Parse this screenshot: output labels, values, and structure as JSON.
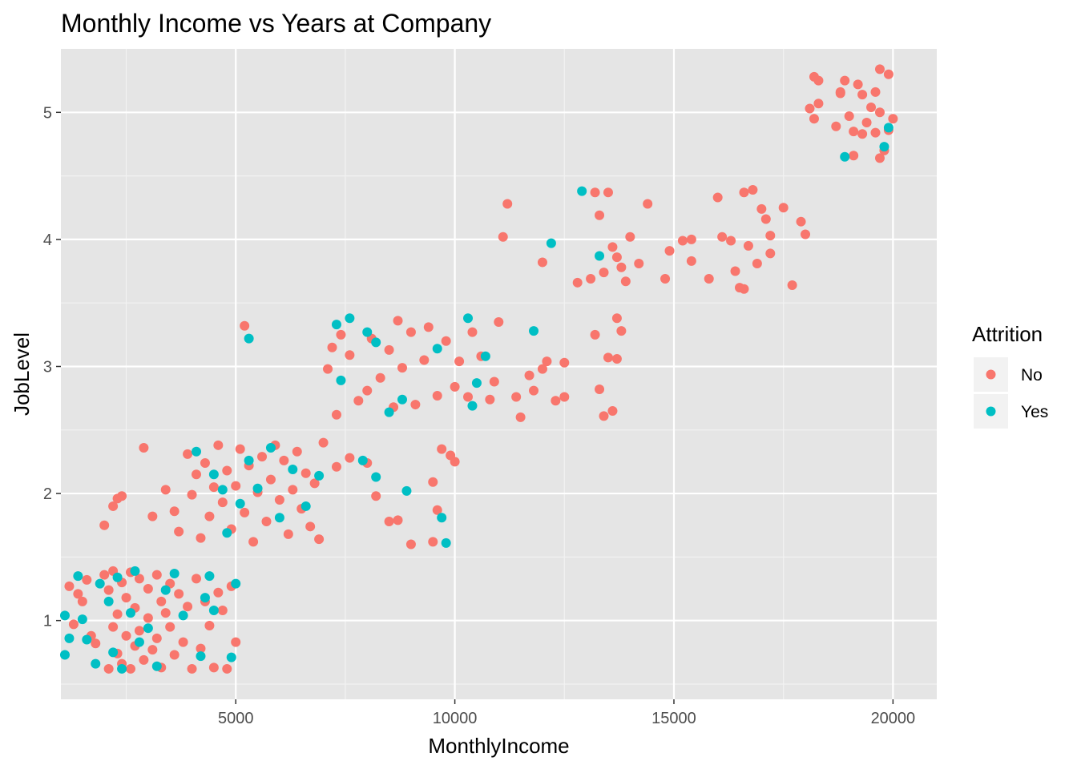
{
  "chart_data": {
    "type": "scatter",
    "title": "Monthly Income vs Years at Company",
    "xlabel": "MonthlyIncome",
    "ylabel": "JobLevel",
    "xlim": [
      1009,
      20999
    ],
    "ylim": [
      0.38,
      5.5
    ],
    "xticks": [
      5000,
      10000,
      15000,
      20000
    ],
    "yticks": [
      1,
      2,
      3,
      4,
      5
    ],
    "grid": true,
    "legend": {
      "title": "Attrition",
      "position": "right",
      "entries": [
        "No",
        "Yes"
      ]
    },
    "colors": {
      "No": "#F8766D",
      "Yes": "#00BFC4"
    },
    "series": [
      {
        "name": "No",
        "points": [
          [
            1200,
            1.27
          ],
          [
            1300,
            0.97
          ],
          [
            1400,
            1.21
          ],
          [
            1500,
            1.15
          ],
          [
            1600,
            1.32
          ],
          [
            1700,
            0.88
          ],
          [
            1800,
            0.82
          ],
          [
            2000,
            1.36
          ],
          [
            2100,
            0.62
          ],
          [
            2100,
            1.24
          ],
          [
            2200,
            1.39
          ],
          [
            2200,
            0.95
          ],
          [
            2300,
            1.05
          ],
          [
            2300,
            0.74
          ],
          [
            2400,
            1.3
          ],
          [
            2400,
            0.66
          ],
          [
            2500,
            1.18
          ],
          [
            2500,
            0.88
          ],
          [
            2600,
            1.38
          ],
          [
            2600,
            0.62
          ],
          [
            2700,
            1.1
          ],
          [
            2700,
            0.8
          ],
          [
            2800,
            1.33
          ],
          [
            2800,
            0.92
          ],
          [
            2900,
            0.69
          ],
          [
            3000,
            1.25
          ],
          [
            3000,
            1.02
          ],
          [
            3100,
            0.77
          ],
          [
            3200,
            1.36
          ],
          [
            3200,
            0.86
          ],
          [
            3300,
            1.15
          ],
          [
            3300,
            0.63
          ],
          [
            3400,
            1.06
          ],
          [
            3500,
            0.95
          ],
          [
            3500,
            1.29
          ],
          [
            3600,
            0.73
          ],
          [
            3700,
            1.21
          ],
          [
            3800,
            0.83
          ],
          [
            3900,
            1.11
          ],
          [
            4000,
            0.62
          ],
          [
            4100,
            1.33
          ],
          [
            4200,
            0.78
          ],
          [
            4300,
            1.15
          ],
          [
            4400,
            0.96
          ],
          [
            4500,
            0.63
          ],
          [
            4600,
            1.22
          ],
          [
            4700,
            1.08
          ],
          [
            4800,
            0.62
          ],
          [
            4900,
            1.27
          ],
          [
            5000,
            0.83
          ],
          [
            2000,
            1.75
          ],
          [
            2200,
            1.9
          ],
          [
            2300,
            1.96
          ],
          [
            2400,
            1.98
          ],
          [
            2900,
            2.36
          ],
          [
            3100,
            1.82
          ],
          [
            3400,
            2.03
          ],
          [
            3600,
            1.86
          ],
          [
            3700,
            1.7
          ],
          [
            3900,
            2.31
          ],
          [
            4000,
            1.99
          ],
          [
            4100,
            2.15
          ],
          [
            4200,
            1.65
          ],
          [
            4300,
            2.24
          ],
          [
            4400,
            1.82
          ],
          [
            4500,
            2.05
          ],
          [
            4600,
            2.38
          ],
          [
            4700,
            1.93
          ],
          [
            4800,
            2.18
          ],
          [
            4900,
            1.72
          ],
          [
            5000,
            2.06
          ],
          [
            5100,
            2.35
          ],
          [
            5200,
            1.85
          ],
          [
            5300,
            2.22
          ],
          [
            5400,
            1.62
          ],
          [
            5500,
            2.01
          ],
          [
            5600,
            2.29
          ],
          [
            5700,
            1.78
          ],
          [
            5800,
            2.11
          ],
          [
            5900,
            2.38
          ],
          [
            6000,
            1.95
          ],
          [
            6100,
            2.26
          ],
          [
            6200,
            1.68
          ],
          [
            6300,
            2.03
          ],
          [
            6400,
            2.33
          ],
          [
            6500,
            1.88
          ],
          [
            6600,
            2.16
          ],
          [
            6700,
            1.74
          ],
          [
            6800,
            2.08
          ],
          [
            6900,
            1.64
          ],
          [
            7000,
            2.4
          ],
          [
            7300,
            2.21
          ],
          [
            7600,
            2.28
          ],
          [
            8000,
            2.24
          ],
          [
            8200,
            1.98
          ],
          [
            8500,
            1.78
          ],
          [
            8700,
            1.79
          ],
          [
            9000,
            1.6
          ],
          [
            9500,
            2.09
          ],
          [
            9600,
            1.87
          ],
          [
            9700,
            2.35
          ],
          [
            9900,
            2.3
          ],
          [
            10000,
            2.25
          ],
          [
            9500,
            1.62
          ],
          [
            5200,
            3.32
          ],
          [
            7100,
            2.98
          ],
          [
            7200,
            3.15
          ],
          [
            7300,
            2.62
          ],
          [
            7400,
            3.25
          ],
          [
            7600,
            3.09
          ],
          [
            7800,
            2.73
          ],
          [
            8000,
            2.81
          ],
          [
            8100,
            3.22
          ],
          [
            8300,
            2.91
          ],
          [
            8500,
            3.13
          ],
          [
            8600,
            2.68
          ],
          [
            8700,
            3.36
          ],
          [
            8800,
            2.99
          ],
          [
            9000,
            3.27
          ],
          [
            9100,
            2.7
          ],
          [
            9300,
            3.05
          ],
          [
            9400,
            3.31
          ],
          [
            9600,
            2.77
          ],
          [
            9800,
            3.2
          ],
          [
            10000,
            2.84
          ],
          [
            10100,
            3.04
          ],
          [
            10300,
            2.76
          ],
          [
            10400,
            3.27
          ],
          [
            10600,
            3.08
          ],
          [
            10800,
            2.74
          ],
          [
            10900,
            2.88
          ],
          [
            11000,
            3.35
          ],
          [
            11400,
            2.76
          ],
          [
            11500,
            2.6
          ],
          [
            11700,
            2.93
          ],
          [
            11800,
            2.81
          ],
          [
            12000,
            2.98
          ],
          [
            12100,
            3.04
          ],
          [
            12300,
            2.73
          ],
          [
            12500,
            3.03
          ],
          [
            12500,
            2.76
          ],
          [
            13200,
            3.25
          ],
          [
            13300,
            2.82
          ],
          [
            13400,
            2.61
          ],
          [
            13500,
            3.07
          ],
          [
            13600,
            2.65
          ],
          [
            13700,
            3.38
          ],
          [
            13800,
            3.28
          ],
          [
            13700,
            3.06
          ],
          [
            11100,
            4.02
          ],
          [
            11200,
            4.28
          ],
          [
            12000,
            3.82
          ],
          [
            12800,
            3.66
          ],
          [
            13100,
            3.69
          ],
          [
            13200,
            4.37
          ],
          [
            13300,
            4.19
          ],
          [
            13400,
            3.74
          ],
          [
            13500,
            4.37
          ],
          [
            13600,
            3.94
          ],
          [
            13700,
            3.86
          ],
          [
            13800,
            3.78
          ],
          [
            13900,
            3.67
          ],
          [
            14000,
            4.02
          ],
          [
            14200,
            3.81
          ],
          [
            14400,
            4.28
          ],
          [
            14800,
            3.69
          ],
          [
            14900,
            3.91
          ],
          [
            15200,
            3.99
          ],
          [
            15400,
            4.0
          ],
          [
            15800,
            3.69
          ],
          [
            16000,
            4.33
          ],
          [
            16100,
            4.02
          ],
          [
            16300,
            3.99
          ],
          [
            16400,
            3.75
          ],
          [
            16500,
            3.62
          ],
          [
            16600,
            4.37
          ],
          [
            16700,
            3.95
          ],
          [
            16800,
            4.39
          ],
          [
            16900,
            3.81
          ],
          [
            17000,
            4.24
          ],
          [
            17100,
            4.16
          ],
          [
            17200,
            3.89
          ],
          [
            17500,
            4.25
          ],
          [
            17700,
            3.64
          ],
          [
            17900,
            4.14
          ],
          [
            18000,
            4.04
          ],
          [
            15400,
            3.83
          ],
          [
            16600,
            3.61
          ],
          [
            17200,
            4.03
          ],
          [
            18100,
            5.03
          ],
          [
            18200,
            4.95
          ],
          [
            18200,
            5.28
          ],
          [
            18300,
            5.25
          ],
          [
            18300,
            5.07
          ],
          [
            18700,
            4.89
          ],
          [
            18800,
            5.16
          ],
          [
            18900,
            5.25
          ],
          [
            19000,
            4.97
          ],
          [
            19100,
            4.85
          ],
          [
            19200,
            5.22
          ],
          [
            19300,
            5.14
          ],
          [
            19400,
            4.92
          ],
          [
            19500,
            5.04
          ],
          [
            19600,
            4.84
          ],
          [
            19700,
            5.34
          ],
          [
            19700,
            5.0
          ],
          [
            19800,
            4.7
          ],
          [
            19900,
            5.3
          ],
          [
            20000,
            4.95
          ],
          [
            19100,
            4.66
          ],
          [
            19300,
            4.83
          ],
          [
            19700,
            4.64
          ],
          [
            19600,
            5.16
          ],
          [
            19900,
            4.86
          ],
          [
            18800,
            5.15
          ]
        ]
      },
      {
        "name": "Yes",
        "points": [
          [
            1100,
            1.04
          ],
          [
            1100,
            0.73
          ],
          [
            1200,
            0.86
          ],
          [
            1400,
            1.35
          ],
          [
            1500,
            1.01
          ],
          [
            1600,
            0.85
          ],
          [
            1800,
            0.66
          ],
          [
            1900,
            1.29
          ],
          [
            2100,
            1.15
          ],
          [
            2200,
            0.75
          ],
          [
            2300,
            1.34
          ],
          [
            2400,
            0.62
          ],
          [
            2600,
            1.06
          ],
          [
            2700,
            1.39
          ],
          [
            2800,
            0.83
          ],
          [
            3000,
            0.94
          ],
          [
            3200,
            0.64
          ],
          [
            3400,
            1.24
          ],
          [
            3600,
            1.37
          ],
          [
            3800,
            1.04
          ],
          [
            4200,
            0.72
          ],
          [
            4300,
            1.18
          ],
          [
            4400,
            1.35
          ],
          [
            4500,
            1.08
          ],
          [
            4900,
            0.71
          ],
          [
            5000,
            1.29
          ],
          [
            4100,
            2.33
          ],
          [
            4500,
            2.15
          ],
          [
            4700,
            2.03
          ],
          [
            4800,
            1.69
          ],
          [
            5100,
            1.92
          ],
          [
            5300,
            2.26
          ],
          [
            5500,
            2.04
          ],
          [
            5800,
            2.36
          ],
          [
            6000,
            1.81
          ],
          [
            6300,
            2.19
          ],
          [
            6600,
            1.9
          ],
          [
            6900,
            2.14
          ],
          [
            7900,
            2.26
          ],
          [
            8200,
            2.13
          ],
          [
            8900,
            2.02
          ],
          [
            9700,
            1.81
          ],
          [
            9800,
            1.61
          ],
          [
            5300,
            3.22
          ],
          [
            7300,
            3.33
          ],
          [
            7400,
            2.89
          ],
          [
            7600,
            3.38
          ],
          [
            8000,
            3.27
          ],
          [
            8200,
            3.19
          ],
          [
            8500,
            2.64
          ],
          [
            8800,
            2.74
          ],
          [
            9600,
            3.14
          ],
          [
            10300,
            3.38
          ],
          [
            10400,
            2.69
          ],
          [
            10500,
            2.87
          ],
          [
            10700,
            3.08
          ],
          [
            11800,
            3.28
          ],
          [
            12200,
            3.97
          ],
          [
            12900,
            4.38
          ],
          [
            13300,
            3.87
          ],
          [
            18900,
            4.65
          ],
          [
            19800,
            4.73
          ],
          [
            19900,
            4.88
          ]
        ]
      }
    ]
  }
}
